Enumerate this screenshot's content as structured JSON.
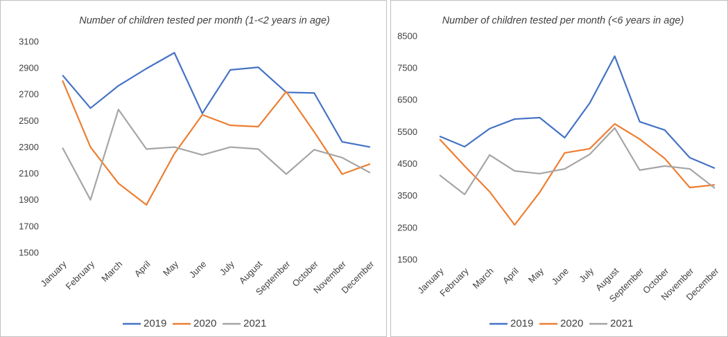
{
  "chart_data": [
    {
      "type": "line",
      "title": "Number of children tested per month (1-<2 years in age)",
      "categories": [
        "January",
        "February",
        "March",
        "April",
        "May",
        "June",
        "July",
        "August",
        "September",
        "October",
        "November",
        "December"
      ],
      "series": [
        {
          "name": "2019",
          "color": "#4472c4",
          "values": [
            2850,
            2600,
            2770,
            2900,
            3020,
            2560,
            2890,
            2910,
            2720,
            2715,
            2345,
            2305
          ]
        },
        {
          "name": "2020",
          "color": "#ed7d31",
          "values": [
            2810,
            2305,
            2030,
            1867,
            2255,
            2550,
            2470,
            2460,
            2725,
            2420,
            2100,
            2177
          ]
        },
        {
          "name": "2021",
          "color": "#a5a5a5",
          "values": [
            2300,
            1905,
            2590,
            2290,
            2305,
            2245,
            2305,
            2290,
            2100,
            2285,
            2225,
            2110
          ]
        }
      ],
      "ylim": [
        1500,
        3100
      ],
      "yticks": [
        1500,
        1700,
        1900,
        2100,
        2300,
        2500,
        2700,
        2900,
        3100
      ],
      "grid": false,
      "legend": "bottom"
    },
    {
      "type": "line",
      "title": "Number of children tested per month (<6 years in age)",
      "categories": [
        "January",
        "February",
        "March",
        "April",
        "May",
        "June",
        "July",
        "August",
        "September",
        "October",
        "November",
        "December"
      ],
      "series": [
        {
          "name": "2019",
          "color": "#4472c4",
          "values": [
            5380,
            5055,
            5620,
            5920,
            5965,
            5335,
            6420,
            7890,
            5835,
            5575,
            4710,
            4380
          ]
        },
        {
          "name": "2020",
          "color": "#ed7d31",
          "values": [
            5290,
            4450,
            3645,
            2605,
            3625,
            4860,
            4990,
            5770,
            5290,
            4685,
            3775,
            3860
          ]
        },
        {
          "name": "2021",
          "color": "#a5a5a5",
          "values": [
            4165,
            3560,
            4795,
            4295,
            4210,
            4360,
            4815,
            5640,
            4320,
            4450,
            4360,
            3755
          ]
        }
      ],
      "ylim": [
        1500,
        8500
      ],
      "yticks": [
        1500,
        2500,
        3500,
        4500,
        5500,
        6500,
        7500,
        8500
      ],
      "grid": false,
      "legend": "bottom"
    }
  ]
}
